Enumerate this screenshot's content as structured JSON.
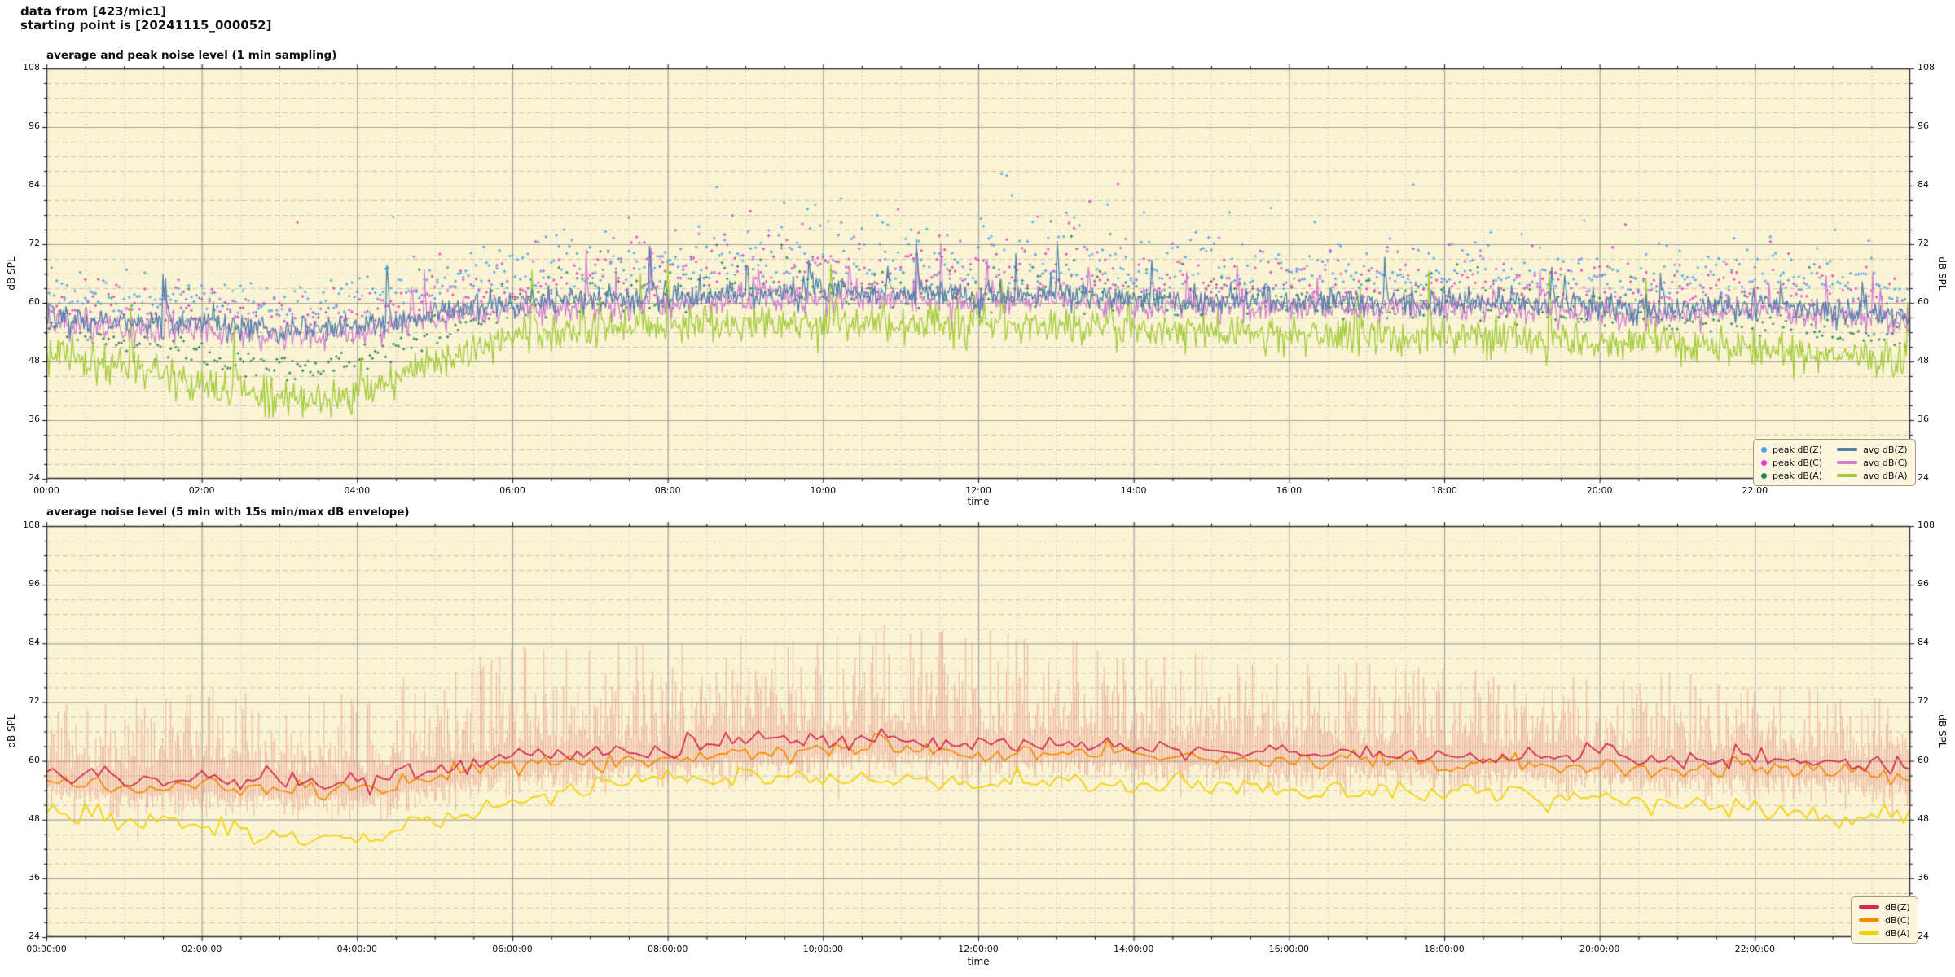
{
  "header": {
    "line1": "data from [423/mic1]",
    "line2": "starting point is [20241115_000052]"
  },
  "figure": {
    "bg": "#ffffff",
    "plot_bg": "#faf3d4",
    "grid_major": "#a6a6a2",
    "grid_minor": "#c9c3b0",
    "spine": "#2a2a2a",
    "tick_color": "#1a1a1a"
  },
  "anchor_hours": [
    0,
    1,
    2,
    3,
    4,
    5,
    6,
    7,
    8,
    9,
    10,
    11,
    12,
    13,
    14,
    15,
    16,
    17,
    18,
    19,
    20,
    21,
    22,
    23,
    24
  ],
  "chart_data": [
    {
      "id": "top",
      "type": "line+scatter",
      "title": "average and peak noise level (1 min sampling)",
      "xlabel": "time",
      "ylabel_left": "dB SPL",
      "ylabel_right": "dB SPL",
      "ylim": [
        24,
        108
      ],
      "yticks": [
        24,
        36,
        48,
        60,
        72,
        84,
        96,
        108
      ],
      "y_minor_step": 3,
      "x_range_hours": [
        0,
        24
      ],
      "xtick_hours": [
        0,
        2,
        4,
        6,
        8,
        10,
        12,
        14,
        16,
        18,
        20,
        22
      ],
      "xtick_labels": [
        "00:00",
        "02:00",
        "04:00",
        "06:00",
        "08:00",
        "10:00",
        "12:00",
        "14:00",
        "16:00",
        "18:00",
        "20:00",
        "22:00"
      ],
      "x_minor_minutes": 30,
      "sample_minutes": 1,
      "grid": true,
      "legend_position": "lower right",
      "series": [
        {
          "name": "avg dB(Z)",
          "color": "#4f81ad",
          "jitter_db": 1.4,
          "spike_prob": 0.015,
          "spike_db": 12,
          "anchors_db": [
            57.5,
            55.5,
            56,
            54.5,
            55,
            58,
            60,
            60.5,
            61,
            62,
            62.5,
            62,
            61.5,
            61.5,
            61,
            60.5,
            60.5,
            60,
            60.5,
            60,
            59.5,
            59,
            59.5,
            58.5,
            57
          ]
        },
        {
          "name": "avg dB(C)",
          "color": "#d27fd2",
          "jitter_db": 1.4,
          "spike_prob": 0.015,
          "spike_db": 12,
          "anchors_db": [
            56.2,
            54.2,
            54.7,
            53.2,
            53.7,
            56.7,
            58.7,
            59.2,
            59.7,
            60.7,
            61.2,
            60.7,
            60.2,
            60.2,
            59.7,
            59.2,
            59.2,
            58.7,
            59.2,
            58.7,
            58.2,
            57.7,
            58.2,
            57.2,
            55.7
          ]
        },
        {
          "name": "avg dB(A)",
          "color": "#a2cc38",
          "jitter_db": 1.9,
          "spike_prob": 0.012,
          "spike_db": 15,
          "anchors_db": [
            50,
            47,
            43.5,
            40.5,
            42,
            48,
            53,
            54,
            55,
            56,
            56,
            55.5,
            55,
            55.5,
            54.5,
            54,
            53.5,
            53,
            53,
            52.5,
            52,
            51.5,
            50.5,
            49,
            48
          ]
        }
      ],
      "scatter": [
        {
          "name": "peak dB(Z)",
          "color": "#49a5ec",
          "follows": "avg dB(Z)",
          "offset_db": 4,
          "cap_db": 91,
          "outlier_prob": 0.02,
          "outlier_extra_db": 16,
          "spread_db": [
            6,
            6,
            6,
            6,
            7,
            8,
            9,
            10,
            11,
            12,
            12,
            12,
            11,
            11,
            10,
            10,
            9,
            9,
            9,
            9,
            8,
            8,
            8,
            7,
            7
          ]
        },
        {
          "name": "peak dB(C)",
          "color": "#e43fc8",
          "follows": "avg dB(C)",
          "offset_db": 3,
          "cap_db": 89,
          "outlier_prob": 0.02,
          "outlier_extra_db": 16,
          "spread_db": [
            6,
            6,
            6,
            6,
            7,
            8,
            9,
            10,
            11,
            11,
            12,
            11,
            11,
            10,
            10,
            9,
            9,
            9,
            9,
            8,
            8,
            8,
            8,
            7,
            7
          ]
        },
        {
          "name": "peak dB(A)",
          "color": "#2f8757",
          "follows": "avg dB(A)",
          "offset_db": 5,
          "cap_db": 82,
          "outlier_prob": 0.015,
          "outlier_extra_db": 13,
          "spread_db": [
            5,
            5,
            5,
            5,
            6,
            6,
            7,
            8,
            8,
            9,
            9,
            9,
            8,
            8,
            8,
            7,
            7,
            7,
            7,
            7,
            6,
            6,
            6,
            5,
            5
          ]
        }
      ],
      "legend": {
        "columns": [
          [
            {
              "label": "peak dB(Z)",
              "marker": "dot",
              "color": "#49a5ec"
            },
            {
              "label": "peak dB(C)",
              "marker": "dot",
              "color": "#e43fc8"
            },
            {
              "label": "peak dB(A)",
              "marker": "dot",
              "color": "#2f8757"
            }
          ],
          [
            {
              "label": "avg dB(Z)",
              "marker": "line",
              "color": "#4f81ad"
            },
            {
              "label": "avg dB(C)",
              "marker": "line",
              "color": "#d27fd2"
            },
            {
              "label": "avg dB(A)",
              "marker": "line",
              "color": "#a2cc38"
            }
          ]
        ]
      }
    },
    {
      "id": "bottom",
      "type": "line+envelope",
      "title": "average noise level (5 min with 15s min/max dB envelope)",
      "xlabel": "time",
      "ylabel_left": "dB SPL",
      "ylabel_right": "dB SPL",
      "ylim": [
        24,
        108
      ],
      "yticks": [
        24,
        36,
        48,
        60,
        72,
        84,
        96,
        108
      ],
      "y_minor_step": 3,
      "x_range_hours": [
        0,
        24
      ],
      "xtick_hours": [
        0,
        2,
        4,
        6,
        8,
        10,
        12,
        14,
        16,
        18,
        20,
        22
      ],
      "xtick_labels": [
        "00:00:00",
        "02:00:00",
        "04:00:00",
        "06:00:00",
        "08:00:00",
        "10:00:00",
        "12:00:00",
        "14:00:00",
        "16:00:00",
        "18:00:00",
        "20:00:00",
        "22:00:00"
      ],
      "x_minor_minutes": 30,
      "sample_minutes": 5,
      "grid": true,
      "legend_position": "lower right",
      "envelope": {
        "follows": "dB(Z)",
        "color": "#e8897e",
        "alpha": 0.5,
        "min_drop_db": 2.5,
        "max_db_by_hour": [
          74,
          73,
          75,
          73,
          74,
          79,
          83,
          85,
          86,
          88,
          87,
          88,
          87,
          85,
          83,
          82,
          82,
          80,
          79,
          78,
          77,
          80,
          76,
          74,
          72
        ]
      },
      "series": [
        {
          "name": "dB(Z)",
          "color": "#d22a50",
          "jitter_db": 0.9,
          "spike_prob": 0.05,
          "spike_db": 3.5,
          "anchors_db": [
            57.5,
            56,
            56.5,
            55.5,
            55.5,
            58,
            61,
            61.5,
            62,
            63.5,
            64,
            64.5,
            63,
            63.5,
            62.5,
            62,
            61.5,
            61.5,
            61,
            61,
            60.5,
            59.5,
            60,
            59.5,
            57.5
          ]
        },
        {
          "name": "dB(C)",
          "color": "#f28d00",
          "jitter_db": 0.9,
          "spike_prob": 0.05,
          "spike_db": 3.2,
          "anchors_db": [
            55.9,
            54.4,
            54.9,
            53.9,
            53.9,
            56.4,
            59.4,
            59.9,
            60.4,
            61.9,
            62.4,
            62.9,
            61.4,
            61.9,
            60.9,
            60.4,
            59.9,
            59.9,
            59.4,
            59.4,
            58.9,
            57.9,
            58.4,
            57.9,
            55.9
          ]
        },
        {
          "name": "dB(A)",
          "color": "#f3d203",
          "jitter_db": 1.0,
          "spike_prob": 0.05,
          "spike_db": 3.5,
          "anchors_db": [
            49,
            47.5,
            46.5,
            44,
            43.5,
            47,
            52,
            54,
            56.5,
            56,
            56,
            56.5,
            55.5,
            56,
            54.5,
            55,
            54,
            54.5,
            53.5,
            53,
            52.5,
            51,
            50,
            48.5,
            47.5
          ]
        }
      ],
      "legend": {
        "columns": [
          [
            {
              "label": "dB(Z)",
              "marker": "line",
              "color": "#d22a50"
            },
            {
              "label": "dB(C)",
              "marker": "line",
              "color": "#f28d00"
            },
            {
              "label": "dB(A)",
              "marker": "line",
              "color": "#f3d203"
            }
          ]
        ]
      }
    }
  ]
}
